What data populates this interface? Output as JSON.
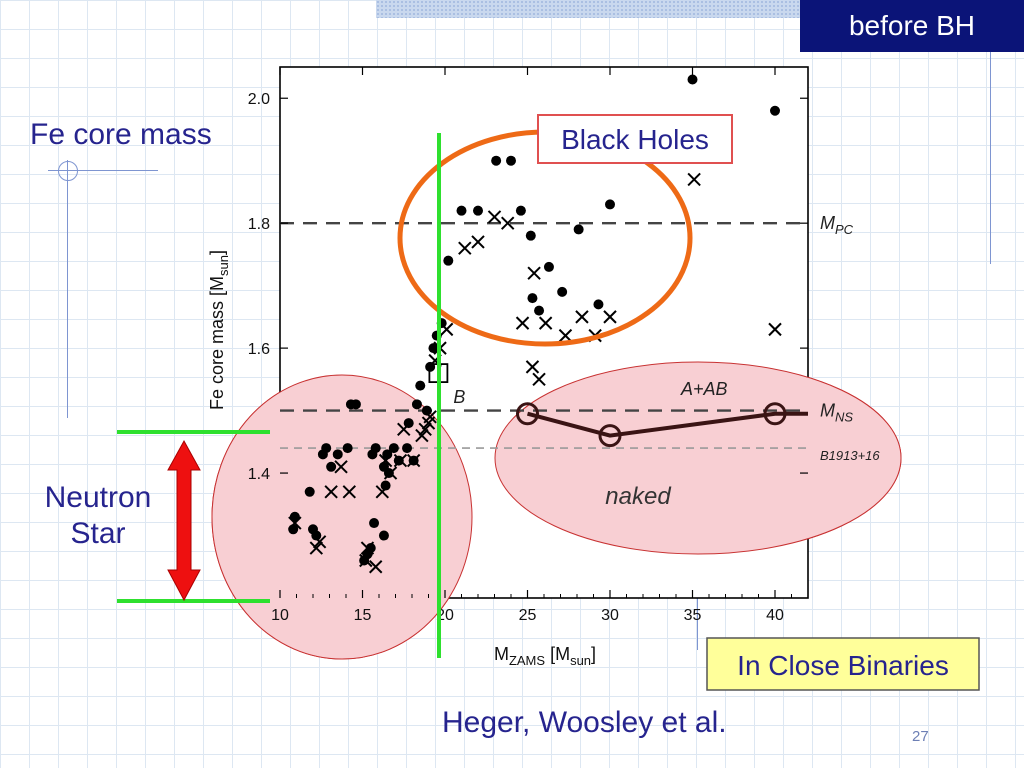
{
  "slide": {
    "corner_label": "before BH",
    "y_caption": "Fe core mass",
    "neutron_star_label": [
      "Neutron",
      "Star"
    ],
    "black_holes_label": "Black Holes",
    "close_binaries_label": "In Close Binaries",
    "citation": "Heger, Woosley et al.",
    "page_number": "27",
    "colors": {
      "title_text": "#26248e",
      "corner_tab_bg": "#0b1478",
      "highlight_green": "#2ee02e",
      "orange_ellipse": "#ee6a16",
      "pink_fill": "#f8cfd3",
      "red_arrow": "#ee1010"
    }
  },
  "chart_data": {
    "type": "scatter",
    "xlabel_main": "M",
    "xlabel_sub": "ZAMS",
    "xlabel_unit_main": "[M",
    "xlabel_unit_sub": "sun",
    "xlabel_unit_close": "]",
    "ylabel_main": "Fe core mass [M",
    "ylabel_sub": "sun",
    "ylabel_close": "]",
    "xlim": [
      10,
      42
    ],
    "ylim": [
      1.2,
      2.05
    ],
    "xticks": [
      10,
      15,
      20,
      25,
      30,
      35,
      40
    ],
    "yticks": [
      1.4,
      1.6,
      1.8,
      2.0
    ],
    "ytick_labels": [
      "1.4",
      "1.6",
      "1.8",
      "2.0"
    ],
    "reference_lines": [
      {
        "y": 1.8,
        "main": "M",
        "sub": "PC",
        "style": "dashed-dark"
      },
      {
        "y": 1.5,
        "main": "M",
        "sub": "NS",
        "style": "dashed-dark"
      },
      {
        "y": 1.44,
        "main": "B1913+16",
        "sub": "",
        "style": "dashed-light"
      }
    ],
    "series": [
      {
        "marker": "dot",
        "points": [
          [
            35,
            2.03
          ],
          [
            40,
            1.98
          ],
          [
            23.1,
            1.9
          ],
          [
            24,
            1.9
          ],
          [
            30,
            1.83
          ],
          [
            21,
            1.82
          ],
          [
            22,
            1.82
          ],
          [
            24.6,
            1.82
          ],
          [
            25.2,
            1.78
          ],
          [
            28.1,
            1.79
          ],
          [
            20.2,
            1.74
          ],
          [
            26.3,
            1.73
          ],
          [
            25.3,
            1.68
          ],
          [
            27.1,
            1.69
          ],
          [
            25.7,
            1.66
          ],
          [
            29.3,
            1.67
          ],
          [
            19.8,
            1.64
          ],
          [
            19.5,
            1.62
          ],
          [
            19.3,
            1.6
          ],
          [
            19.1,
            1.57
          ],
          [
            18.5,
            1.54
          ],
          [
            14.3,
            1.51
          ],
          [
            14.6,
            1.51
          ],
          [
            18.3,
            1.51
          ],
          [
            18.9,
            1.5
          ],
          [
            17.8,
            1.48
          ],
          [
            12.8,
            1.44
          ],
          [
            13.5,
            1.43
          ],
          [
            14.1,
            1.44
          ],
          [
            15.8,
            1.44
          ],
          [
            16.9,
            1.44
          ],
          [
            17.7,
            1.44
          ],
          [
            12.6,
            1.43
          ],
          [
            15.6,
            1.43
          ],
          [
            16.5,
            1.43
          ],
          [
            17.2,
            1.42
          ],
          [
            13.1,
            1.41
          ],
          [
            16.3,
            1.41
          ],
          [
            16.6,
            1.4
          ],
          [
            18.1,
            1.42
          ],
          [
            16.4,
            1.38
          ],
          [
            11.8,
            1.37
          ],
          [
            10.9,
            1.33
          ],
          [
            10.8,
            1.31
          ],
          [
            12,
            1.31
          ],
          [
            12.2,
            1.3
          ],
          [
            15.7,
            1.32
          ],
          [
            16.3,
            1.3
          ],
          [
            15.3,
            1.27
          ],
          [
            15.1,
            1.26
          ],
          [
            15.5,
            1.28
          ]
        ]
      },
      {
        "marker": "cross",
        "points": [
          [
            35.1,
            1.87
          ],
          [
            23,
            1.81
          ],
          [
            23.8,
            1.8
          ],
          [
            22,
            1.77
          ],
          [
            21.2,
            1.76
          ],
          [
            25.4,
            1.72
          ],
          [
            24.7,
            1.64
          ],
          [
            26.1,
            1.64
          ],
          [
            27.3,
            1.62
          ],
          [
            28.3,
            1.65
          ],
          [
            29.1,
            1.62
          ],
          [
            30,
            1.65
          ],
          [
            20.1,
            1.63
          ],
          [
            19.7,
            1.6
          ],
          [
            19.4,
            1.58
          ],
          [
            25.3,
            1.57
          ],
          [
            25.7,
            1.55
          ],
          [
            40,
            1.63
          ],
          [
            19.1,
            1.49
          ],
          [
            19,
            1.48
          ],
          [
            18.8,
            1.47
          ],
          [
            18.6,
            1.46
          ],
          [
            17.5,
            1.47
          ],
          [
            16.4,
            1.42
          ],
          [
            17.3,
            1.42
          ],
          [
            18.1,
            1.42
          ],
          [
            16.7,
            1.4
          ],
          [
            13.7,
            1.41
          ],
          [
            13.1,
            1.37
          ],
          [
            14.2,
            1.37
          ],
          [
            16.2,
            1.37
          ],
          [
            10.9,
            1.32
          ],
          [
            12.4,
            1.29
          ],
          [
            12.2,
            1.28
          ],
          [
            15.3,
            1.28
          ],
          [
            15.2,
            1.26
          ],
          [
            15.8,
            1.25
          ]
        ]
      }
    ],
    "companion_series": {
      "name": "A+AB",
      "points": [
        [
          25,
          1.495
        ],
        [
          30,
          1.46
        ],
        [
          40,
          1.495
        ]
      ]
    },
    "annotations": [
      {
        "text": "B",
        "x": 19.6,
        "y": 1.56,
        "marker": "open-square"
      },
      {
        "text": "naked",
        "style": "italic"
      }
    ],
    "grid": false
  }
}
